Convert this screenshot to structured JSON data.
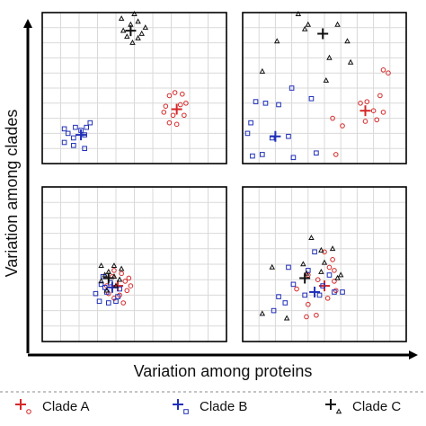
{
  "chart_data": {
    "type": "scatter",
    "xlabel": "Variation among proteins",
    "ylabel": "Variation among clades",
    "xlim": [
      0,
      10
    ],
    "ylim": [
      0,
      10
    ],
    "grid": true,
    "legend_position": "bottom",
    "series_styles": [
      {
        "key": "A",
        "name": "Clade A",
        "color": "#d62728",
        "point_marker": "circle",
        "centroid_marker": "plus"
      },
      {
        "key": "B",
        "name": "Clade B",
        "color": "#1f2fb8",
        "point_marker": "square",
        "centroid_marker": "plus"
      },
      {
        "key": "C",
        "name": "Clade C",
        "color": "#111111",
        "point_marker": "triangle",
        "centroid_marker": "plus"
      }
    ],
    "panels": [
      {
        "position": "top-left",
        "series": [
          {
            "key": "A",
            "centroid": [
              7.3,
              3.6
            ],
            "points": [
              [
                6.7,
                3.8
              ],
              [
                6.9,
                4.5
              ],
              [
                7.2,
                4.7
              ],
              [
                7.6,
                4.6
              ],
              [
                7.8,
                4.0
              ],
              [
                7.7,
                3.2
              ],
              [
                7.3,
                2.6
              ],
              [
                6.9,
                2.7
              ],
              [
                7.1,
                3.2
              ],
              [
                7.5,
                3.9
              ],
              [
                6.6,
                3.4
              ]
            ]
          },
          {
            "key": "B",
            "centroid": [
              2.1,
              1.9
            ],
            "points": [
              [
                1.2,
                2.3
              ],
              [
                1.4,
                2.0
              ],
              [
                1.8,
                2.4
              ],
              [
                2.4,
                2.4
              ],
              [
                2.6,
                2.7
              ],
              [
                2.3,
                1.9
              ],
              [
                1.7,
                1.7
              ],
              [
                1.2,
                1.4
              ],
              [
                1.7,
                1.2
              ],
              [
                2.3,
                1.0
              ],
              [
                2.1,
                2.2
              ]
            ]
          },
          {
            "key": "C",
            "centroid": [
              4.8,
              8.8
            ],
            "points": [
              [
                4.3,
                9.6
              ],
              [
                4.8,
                9.2
              ],
              [
                5.2,
                9.4
              ],
              [
                5.6,
                9.0
              ],
              [
                4.6,
                8.4
              ],
              [
                5.2,
                8.3
              ],
              [
                4.4,
                8.8
              ],
              [
                4.9,
                8.0
              ],
              [
                5.4,
                8.6
              ],
              [
                5.0,
                9.9
              ]
            ]
          }
        ]
      },
      {
        "position": "top-right",
        "series": [
          {
            "key": "A",
            "centroid": [
              7.5,
              3.5
            ],
            "points": [
              [
                7.2,
                4.0
              ],
              [
                7.6,
                4.1
              ],
              [
                8.6,
                6.2
              ],
              [
                8.9,
                6.0
              ],
              [
                8.4,
                4.5
              ],
              [
                8.6,
                3.4
              ],
              [
                7.5,
                2.8
              ],
              [
                8.0,
                3.5
              ],
              [
                8.2,
                2.9
              ],
              [
                5.5,
                3.0
              ],
              [
                6.1,
                2.5
              ],
              [
                5.7,
                0.6
              ]
            ]
          },
          {
            "key": "B",
            "centroid": [
              2.0,
              1.8
            ],
            "points": [
              [
                0.8,
                4.1
              ],
              [
                1.4,
                4.0
              ],
              [
                2.2,
                3.9
              ],
              [
                3.0,
                5.0
              ],
              [
                4.2,
                4.3
              ],
              [
                0.5,
                2.7
              ],
              [
                0.3,
                2.0
              ],
              [
                1.8,
                1.7
              ],
              [
                0.6,
                0.5
              ],
              [
                1.2,
                0.6
              ],
              [
                3.1,
                0.4
              ],
              [
                2.8,
                1.8
              ],
              [
                4.5,
                0.7
              ]
            ]
          },
          {
            "key": "C",
            "centroid": [
              4.9,
              8.6
            ],
            "points": [
              [
                3.4,
                9.9
              ],
              [
                4.0,
                9.2
              ],
              [
                5.8,
                9.2
              ],
              [
                6.4,
                8.1
              ],
              [
                5.3,
                7.0
              ],
              [
                2.1,
                8.1
              ],
              [
                1.2,
                6.1
              ],
              [
                3.8,
                8.9
              ],
              [
                5.1,
                5.5
              ],
              [
                6.6,
                6.7
              ]
            ]
          }
        ]
      },
      {
        "position": "bottom-left",
        "series": [
          {
            "key": "A",
            "centroid": [
              4.1,
              3.6
            ],
            "points": [
              [
                3.9,
                4.6
              ],
              [
                4.3,
                4.4
              ],
              [
                4.5,
                3.9
              ],
              [
                4.8,
                3.6
              ],
              [
                4.6,
                3.3
              ],
              [
                4.2,
                3.0
              ],
              [
                3.9,
                2.8
              ],
              [
                3.6,
                3.1
              ],
              [
                3.5,
                3.6
              ],
              [
                4.4,
                2.5
              ],
              [
                3.8,
                4.2
              ],
              [
                4.7,
                4.1
              ]
            ]
          },
          {
            "key": "B",
            "centroid": [
              3.8,
              3.5
            ],
            "points": [
              [
                3.3,
                4.2
              ],
              [
                3.4,
                3.5
              ],
              [
                2.9,
                3.1
              ],
              [
                3.1,
                2.6
              ],
              [
                3.6,
                2.5
              ],
              [
                4.0,
                2.6
              ],
              [
                4.2,
                3.4
              ],
              [
                3.7,
                3.8
              ],
              [
                3.2,
                3.7
              ],
              [
                4.1,
                2.9
              ],
              [
                3.5,
                3.2
              ]
            ]
          },
          {
            "key": "C",
            "centroid": [
              3.6,
              4.1
            ],
            "points": [
              [
                3.2,
                4.9
              ],
              [
                3.6,
                4.5
              ],
              [
                3.9,
                4.9
              ],
              [
                4.3,
                4.7
              ],
              [
                3.4,
                4.3
              ],
              [
                3.9,
                4.2
              ],
              [
                3.2,
                3.9
              ],
              [
                4.0,
                3.6
              ],
              [
                3.5,
                3.3
              ],
              [
                4.2,
                4.0
              ]
            ]
          }
        ]
      },
      {
        "position": "bottom-right",
        "series": [
          {
            "key": "A",
            "centroid": [
              5.0,
              3.6
            ],
            "points": [
              [
                5.0,
                5.8
              ],
              [
                5.5,
                5.3
              ],
              [
                5.3,
                4.8
              ],
              [
                5.6,
                4.6
              ],
              [
                5.6,
                3.9
              ],
              [
                4.6,
                4.0
              ],
              [
                4.0,
                4.3
              ],
              [
                5.7,
                3.3
              ],
              [
                3.3,
                3.4
              ],
              [
                4.0,
                2.4
              ],
              [
                3.9,
                1.6
              ],
              [
                5.2,
                2.8
              ],
              [
                4.5,
                1.7
              ]
            ]
          },
          {
            "key": "B",
            "centroid": [
              4.4,
              3.2
            ],
            "points": [
              [
                2.8,
                4.8
              ],
              [
                4.4,
                5.8
              ],
              [
                3.1,
                3.7
              ],
              [
                4.9,
                3.6
              ],
              [
                5.6,
                3.2
              ],
              [
                3.8,
                3.0
              ],
              [
                4.7,
                3.0
              ],
              [
                2.2,
                2.9
              ],
              [
                2.6,
                2.5
              ],
              [
                6.1,
                3.2
              ],
              [
                5.3,
                4.3
              ],
              [
                1.9,
                2.0
              ],
              [
                4.0,
                4.6
              ]
            ]
          },
          {
            "key": "C",
            "centroid": [
              3.8,
              4.1
            ],
            "points": [
              [
                4.2,
                6.7
              ],
              [
                4.8,
                5.9
              ],
              [
                5.5,
                6.0
              ],
              [
                3.7,
                5.0
              ],
              [
                5.0,
                5.1
              ],
              [
                1.8,
                4.8
              ],
              [
                3.9,
                4.4
              ],
              [
                4.8,
                4.5
              ],
              [
                6.0,
                4.3
              ],
              [
                1.2,
                1.8
              ],
              [
                2.7,
                1.5
              ],
              [
                5.8,
                4.1
              ]
            ]
          }
        ]
      }
    ]
  }
}
